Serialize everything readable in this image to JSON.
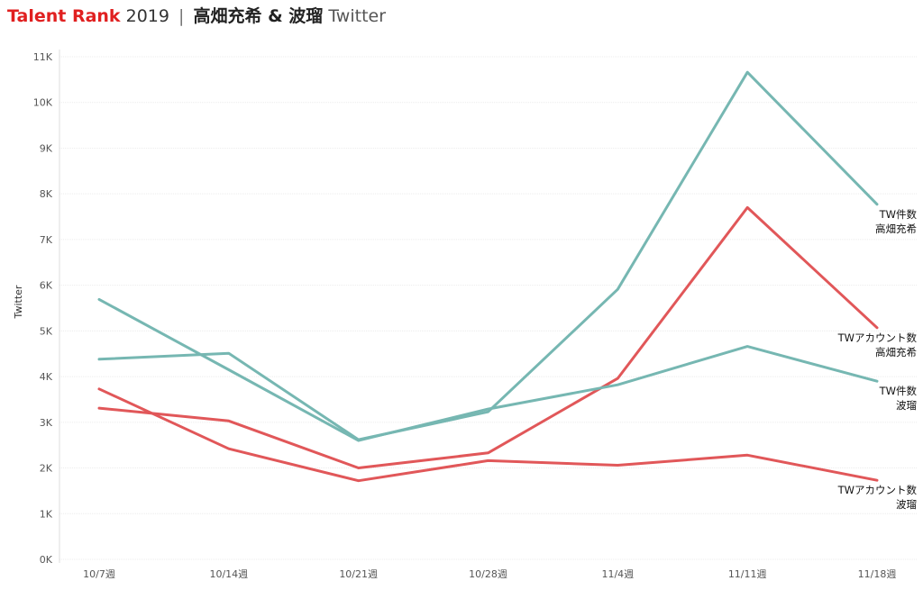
{
  "title": {
    "brand": "Talent Rank",
    "year": "2019",
    "separator": "|",
    "names": "高畑充希 & 波瑠",
    "platform": "Twitter"
  },
  "chart_data": {
    "type": "line",
    "ylabel": "Twitter",
    "xlabel": "",
    "ylim": [
      0,
      11000
    ],
    "yticks": [
      0,
      1000,
      2000,
      3000,
      4000,
      5000,
      6000,
      7000,
      8000,
      9000,
      10000,
      11000
    ],
    "ytick_labels": [
      "0K",
      "1K",
      "2K",
      "3K",
      "4K",
      "5K",
      "6K",
      "7K",
      "8K",
      "9K",
      "10K",
      "11K"
    ],
    "grid": true,
    "categories": [
      "10/7週",
      "10/14週",
      "10/21週",
      "10/28週",
      "11/4週",
      "11/11週",
      "11/18週"
    ],
    "series": [
      {
        "name": "TW件数 高畑充希",
        "label_lines": [
          "TW件数",
          "高畑充希"
        ],
        "color": "#76b7b2",
        "values": [
          4380,
          4510,
          2620,
          3230,
          5910,
          10660,
          7770
        ]
      },
      {
        "name": "TWアカウント数 高畑充希",
        "label_lines": [
          "TWアカウント数",
          "高畑充希"
        ],
        "color": "#e15759",
        "values": [
          3310,
          3030,
          2000,
          2330,
          3960,
          7700,
          5070
        ]
      },
      {
        "name": "TW件数 波瑠",
        "label_lines": [
          "TW件数",
          "波瑠"
        ],
        "color": "#76b7b2",
        "values": [
          5690,
          4150,
          2600,
          3290,
          3820,
          4660,
          3900
        ]
      },
      {
        "name": "TWアカウント数 波瑠",
        "label_lines": [
          "TWアカウント数",
          "波瑠"
        ],
        "color": "#e15759",
        "values": [
          3730,
          2420,
          1720,
          2160,
          2060,
          2280,
          1730
        ]
      }
    ]
  }
}
